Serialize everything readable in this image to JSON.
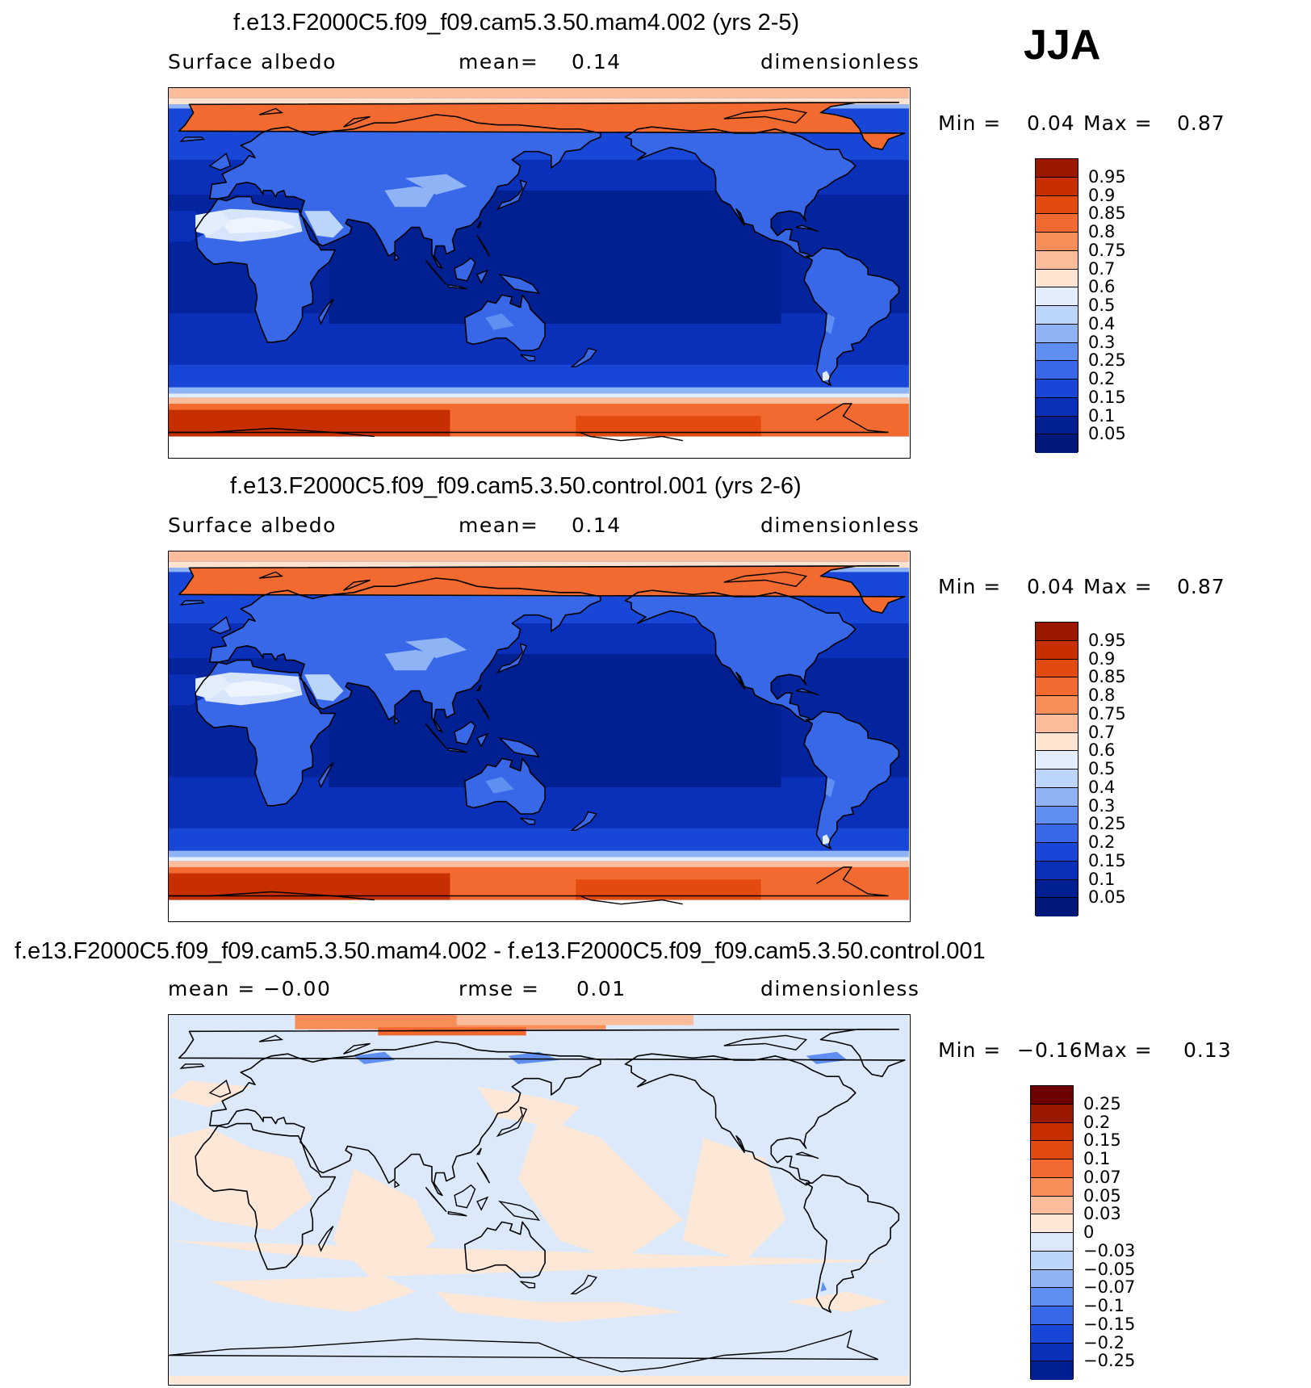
{
  "season": "JJA",
  "panels": [
    {
      "title": "f.e13.F2000C5.f09_f09.cam5.3.50.mam4.002 (yrs 2-5)",
      "left_label": "Surface albedo",
      "center_label": "mean=",
      "center_value": "0.14",
      "right_label": "dimensionless",
      "min_label": "Min =",
      "min_value": "0.04",
      "max_label": "Max =",
      "max_value": "0.87",
      "colorbar_labels": [
        "0.95",
        "0.9",
        "0.85",
        "0.8",
        "0.75",
        "0.7",
        "0.6",
        "0.5",
        "0.4",
        "0.3",
        "0.25",
        "0.2",
        "0.15",
        "0.1",
        "0.05"
      ],
      "map_type": "field",
      "map_variant": "A"
    },
    {
      "title": "f.e13.F2000C5.f09_f09.cam5.3.50.control.001 (yrs 2-6)",
      "left_label": "Surface albedo",
      "center_label": "mean=",
      "center_value": "0.14",
      "right_label": "dimensionless",
      "min_label": "Min =",
      "min_value": "0.04",
      "max_label": "Max =",
      "max_value": "0.87",
      "colorbar_labels": [
        "0.95",
        "0.9",
        "0.85",
        "0.8",
        "0.75",
        "0.7",
        "0.6",
        "0.5",
        "0.4",
        "0.3",
        "0.25",
        "0.2",
        "0.15",
        "0.1",
        "0.05"
      ],
      "map_type": "field",
      "map_variant": "B"
    },
    {
      "title": "f.e13.F2000C5.f09_f09.cam5.3.50.mam4.002 - f.e13.F2000C5.f09_f09.cam5.3.50.control.001",
      "left_label": "mean = −0.00",
      "center_label": "rmse =",
      "center_value": "0.01",
      "right_label": "dimensionless",
      "min_label": "Min =",
      "min_value": "−0.16",
      "max_label": "Max =",
      "max_value": "0.13",
      "colorbar_labels": [
        "0.25",
        "0.2",
        "0.15",
        "0.1",
        "0.07",
        "0.05",
        "0.03",
        "0",
        "−0.03",
        "−0.05",
        "−0.07",
        "−0.1",
        "−0.15",
        "−0.2",
        "−0.25"
      ],
      "map_type": "difference",
      "map_variant": "C"
    }
  ],
  "colors": {
    "field_scale": [
      "#6e0000",
      "#9a1800",
      "#c72f00",
      "#e24a10",
      "#f26a30",
      "#f78e5a",
      "#fbbc9c",
      "#fde3d0",
      "#e3eefc",
      "#bcd6fb",
      "#8fb4f6",
      "#5f8ff0",
      "#3868e8",
      "#1847d8",
      "#0a2fb8",
      "#001f90",
      "#00187a"
    ],
    "diff_scale": [
      "#6e0000",
      "#9a1800",
      "#c72f00",
      "#e24a10",
      "#f26a30",
      "#f78e5a",
      "#fbbc9c",
      "#fde8d8",
      "#dbe9fb",
      "#bcd6fb",
      "#8fb4f6",
      "#5f8ff0",
      "#3868e8",
      "#1847d8",
      "#0a2fb8",
      "#001f90"
    ],
    "coastline": "#000000"
  }
}
